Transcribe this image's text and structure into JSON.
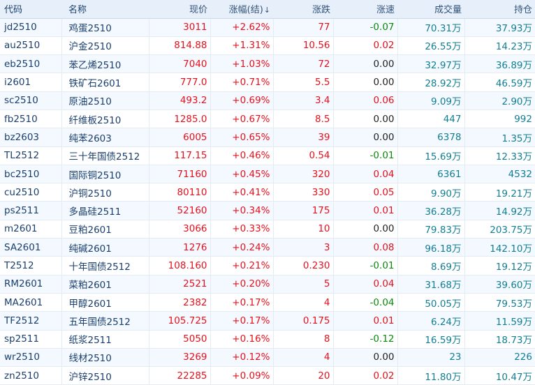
{
  "headers": {
    "code": "代码",
    "name": "名称",
    "price": "现价",
    "change_pct": "涨幅(结)",
    "change": "涨跌",
    "speed": "涨速",
    "volume": "成交量",
    "open_interest": "持仓"
  },
  "sort_icon": "↓",
  "rows": [
    {
      "code": "jd2510",
      "name": "鸡蛋2510",
      "price": "3011",
      "change_pct": "+2.62%",
      "change": "77",
      "speed": "-0.07",
      "speed_dir": "down",
      "volume": "70.31万",
      "open_interest": "37.93万"
    },
    {
      "code": "au2510",
      "name": "沪金2510",
      "price": "814.88",
      "change_pct": "+1.31%",
      "change": "10.56",
      "speed": "0.02",
      "speed_dir": "up",
      "volume": "26.55万",
      "open_interest": "14.23万"
    },
    {
      "code": "eb2510",
      "name": "苯乙烯2510",
      "price": "7040",
      "change_pct": "+1.03%",
      "change": "72",
      "speed": "0.00",
      "speed_dir": "flat",
      "volume": "32.97万",
      "open_interest": "36.89万"
    },
    {
      "code": "i2601",
      "name": "铁矿石2601",
      "price": "777.0",
      "change_pct": "+0.71%",
      "change": "5.5",
      "speed": "0.00",
      "speed_dir": "flat",
      "volume": "28.92万",
      "open_interest": "46.59万"
    },
    {
      "code": "sc2510",
      "name": "原油2510",
      "price": "493.2",
      "change_pct": "+0.69%",
      "change": "3.4",
      "speed": "0.06",
      "speed_dir": "up",
      "volume": "9.09万",
      "open_interest": "2.90万"
    },
    {
      "code": "fb2510",
      "name": "纤维板2510",
      "price": "1285.0",
      "change_pct": "+0.67%",
      "change": "8.5",
      "speed": "0.00",
      "speed_dir": "flat",
      "volume": "447",
      "open_interest": "992"
    },
    {
      "code": "bz2603",
      "name": "纯苯2603",
      "price": "6005",
      "change_pct": "+0.65%",
      "change": "39",
      "speed": "0.00",
      "speed_dir": "flat",
      "volume": "6378",
      "open_interest": "1.35万"
    },
    {
      "code": "TL2512",
      "name": "三十年国债2512",
      "price": "117.15",
      "change_pct": "+0.46%",
      "change": "0.54",
      "speed": "-0.01",
      "speed_dir": "down",
      "volume": "15.69万",
      "open_interest": "12.33万"
    },
    {
      "code": "bc2510",
      "name": "国际铜2510",
      "price": "71160",
      "change_pct": "+0.45%",
      "change": "320",
      "speed": "0.04",
      "speed_dir": "up",
      "volume": "6361",
      "open_interest": "4532"
    },
    {
      "code": "cu2510",
      "name": "沪铜2510",
      "price": "80110",
      "change_pct": "+0.41%",
      "change": "330",
      "speed": "0.05",
      "speed_dir": "up",
      "volume": "9.90万",
      "open_interest": "19.21万"
    },
    {
      "code": "ps2511",
      "name": "多晶硅2511",
      "price": "52160",
      "change_pct": "+0.34%",
      "change": "175",
      "speed": "0.01",
      "speed_dir": "up",
      "volume": "36.28万",
      "open_interest": "14.92万"
    },
    {
      "code": "m2601",
      "name": "豆粕2601",
      "price": "3066",
      "change_pct": "+0.33%",
      "change": "10",
      "speed": "0.00",
      "speed_dir": "flat",
      "volume": "79.83万",
      "open_interest": "203.75万"
    },
    {
      "code": "SA2601",
      "name": "纯碱2601",
      "price": "1276",
      "change_pct": "+0.24%",
      "change": "3",
      "speed": "0.08",
      "speed_dir": "up",
      "volume": "96.18万",
      "open_interest": "142.10万"
    },
    {
      "code": "T2512",
      "name": "十年国债2512",
      "price": "108.160",
      "change_pct": "+0.21%",
      "change": "0.230",
      "speed": "-0.01",
      "speed_dir": "down",
      "volume": "8.69万",
      "open_interest": "19.12万"
    },
    {
      "code": "RM2601",
      "name": "菜粕2601",
      "price": "2521",
      "change_pct": "+0.20%",
      "change": "5",
      "speed": "0.04",
      "speed_dir": "up",
      "volume": "31.68万",
      "open_interest": "39.60万"
    },
    {
      "code": "MA2601",
      "name": "甲醇2601",
      "price": "2382",
      "change_pct": "+0.17%",
      "change": "4",
      "speed": "-0.04",
      "speed_dir": "down",
      "volume": "50.05万",
      "open_interest": "79.53万"
    },
    {
      "code": "TF2512",
      "name": "五年国债2512",
      "price": "105.725",
      "change_pct": "+0.17%",
      "change": "0.175",
      "speed": "0.01",
      "speed_dir": "up",
      "volume": "6.24万",
      "open_interest": "11.59万"
    },
    {
      "code": "sp2511",
      "name": "纸浆2511",
      "price": "5050",
      "change_pct": "+0.16%",
      "change": "8",
      "speed": "-0.12",
      "speed_dir": "down",
      "volume": "16.59万",
      "open_interest": "18.73万"
    },
    {
      "code": "wr2510",
      "name": "线材2510",
      "price": "3269",
      "change_pct": "+0.12%",
      "change": "4",
      "speed": "0.00",
      "speed_dir": "flat",
      "volume": "23",
      "open_interest": "226"
    },
    {
      "code": "zn2510",
      "name": "沪锌2510",
      "price": "22285",
      "change_pct": "+0.09%",
      "change": "20",
      "speed": "0.02",
      "speed_dir": "up",
      "volume": "11.80万",
      "open_interest": "10.47万"
    }
  ]
}
